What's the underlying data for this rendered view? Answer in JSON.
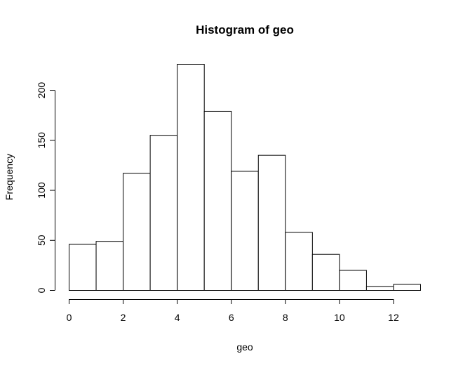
{
  "chart_data": {
    "type": "bar",
    "title": "Histogram of geo",
    "xlabel": "geo",
    "ylabel": "Frequency",
    "bins": [
      {
        "x0": 0,
        "x1": 1,
        "count": 46
      },
      {
        "x0": 1,
        "x1": 2,
        "count": 49
      },
      {
        "x0": 2,
        "x1": 3,
        "count": 117
      },
      {
        "x0": 3,
        "x1": 4,
        "count": 155
      },
      {
        "x0": 4,
        "x1": 5,
        "count": 226
      },
      {
        "x0": 5,
        "x1": 6,
        "count": 179
      },
      {
        "x0": 6,
        "x1": 7,
        "count": 119
      },
      {
        "x0": 7,
        "x1": 8,
        "count": 135
      },
      {
        "x0": 8,
        "x1": 9,
        "count": 58
      },
      {
        "x0": 9,
        "x1": 10,
        "count": 36
      },
      {
        "x0": 10,
        "x1": 11,
        "count": 20
      },
      {
        "x0": 11,
        "x1": 12,
        "count": 4
      },
      {
        "x0": 12,
        "x1": 13,
        "count": 6
      }
    ],
    "xticks": [
      "0",
      "2",
      "4",
      "6",
      "8",
      "10",
      "12"
    ],
    "yticks": [
      "0",
      "50",
      "100",
      "150",
      "200"
    ],
    "xlim": [
      0,
      13
    ],
    "ylim": [
      0,
      226
    ],
    "grid": false
  }
}
